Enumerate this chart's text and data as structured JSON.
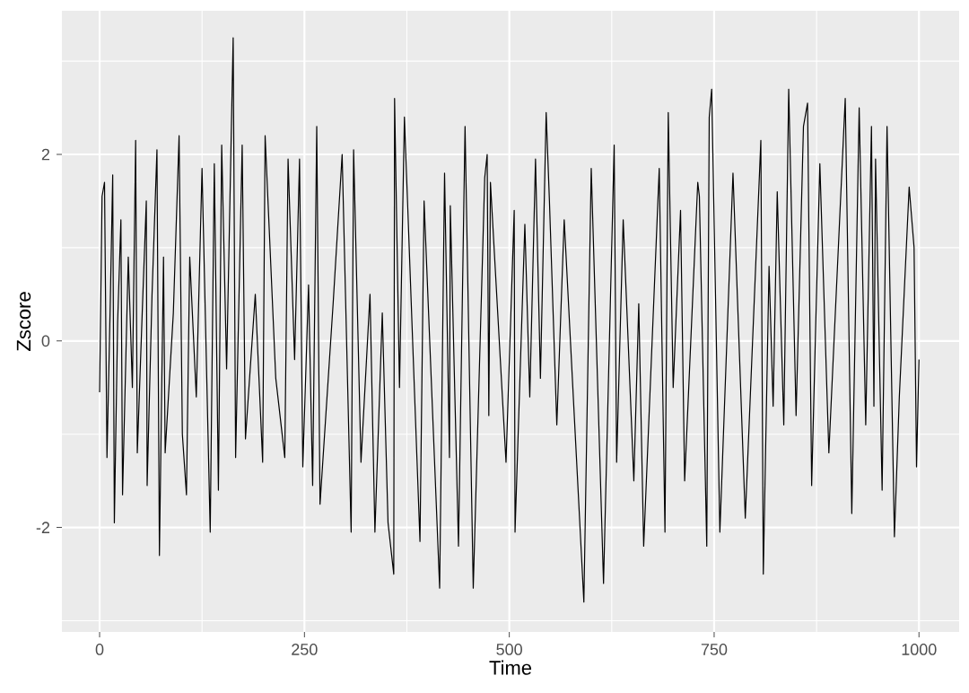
{
  "chart_data": {
    "type": "line",
    "xlabel": "Time",
    "ylabel": "Zscore",
    "xlim": [
      -46,
      1049
    ],
    "ylim": [
      -3.12,
      3.54
    ],
    "xticks": [
      0,
      250,
      500,
      750,
      1000
    ],
    "yticks": [
      -2,
      0,
      2
    ],
    "grid": true,
    "line_style": "solid",
    "marker": "none",
    "series": [
      {
        "color": "#000000",
        "x": [
          0,
          3,
          6,
          9,
          13,
          16,
          18,
          22,
          26,
          28,
          35,
          40,
          44,
          46,
          52,
          57,
          58,
          64,
          70,
          73,
          78,
          80,
          90,
          97,
          101,
          106,
          110,
          118,
          125,
          135,
          140,
          145,
          149,
          155,
          163,
          166,
          174,
          178,
          190,
          199,
          202,
          215,
          226,
          230,
          238,
          244,
          248,
          255,
          260,
          265,
          269,
          285,
          296,
          307,
          310,
          319,
          330,
          336,
          345,
          352,
          359,
          360,
          366,
          372,
          391,
          396,
          415,
          421,
          427,
          428,
          438,
          446,
          456,
          470,
          473,
          475,
          477,
          496,
          506,
          507,
          519,
          525,
          532,
          538,
          545,
          549,
          558,
          567,
          591,
          600,
          615,
          628,
          631,
          639,
          652,
          658,
          664,
          683,
          690,
          694,
          700,
          709,
          714,
          730,
          732,
          741,
          744,
          747,
          757,
          773,
          788,
          807,
          810,
          817,
          822,
          827,
          835,
          841,
          850,
          859,
          864,
          869,
          879,
          890,
          910,
          918,
          927,
          935,
          942,
          945,
          947,
          955,
          961,
          970,
          976,
          988,
          994,
          997,
          1000
        ],
        "values": [
          -0.55,
          1.55,
          1.7,
          -1.25,
          0.4,
          1.78,
          -1.95,
          0.2,
          1.3,
          -1.65,
          0.9,
          -0.5,
          2.15,
          -1.2,
          0.3,
          1.5,
          -1.55,
          0.5,
          2.05,
          -2.3,
          0.9,
          -1.2,
          0.3,
          2.2,
          -1.0,
          -1.65,
          0.9,
          -0.6,
          1.85,
          -2.05,
          1.9,
          -1.6,
          2.1,
          -0.3,
          3.25,
          -1.25,
          2.1,
          -1.05,
          0.5,
          -1.3,
          2.2,
          -0.4,
          -1.25,
          1.95,
          -0.2,
          1.95,
          -1.35,
          0.6,
          -1.55,
          2.3,
          -1.75,
          0.4,
          2.0,
          -2.05,
          2.05,
          -1.3,
          0.5,
          -2.05,
          0.3,
          -1.95,
          -2.5,
          2.6,
          -0.5,
          2.4,
          -2.15,
          1.5,
          -2.65,
          1.8,
          -1.25,
          1.45,
          -2.2,
          2.3,
          -2.65,
          1.75,
          2.0,
          -0.8,
          1.7,
          -1.3,
          1.4,
          -2.05,
          1.25,
          -0.6,
          1.95,
          -0.4,
          2.45,
          1.5,
          -0.9,
          1.3,
          -2.8,
          1.85,
          -2.6,
          2.1,
          -1.3,
          1.3,
          -1.5,
          0.4,
          -2.2,
          1.85,
          -2.05,
          2.45,
          -0.5,
          1.4,
          -1.5,
          1.7,
          1.55,
          -2.2,
          2.4,
          2.7,
          -2.05,
          1.8,
          -1.9,
          2.15,
          -2.5,
          0.8,
          -0.7,
          1.6,
          -0.9,
          2.7,
          -0.8,
          2.3,
          2.55,
          -1.55,
          1.9,
          -1.2,
          2.6,
          -1.85,
          2.5,
          -0.9,
          2.3,
          -0.7,
          1.95,
          -1.6,
          2.3,
          -2.1,
          -0.6,
          1.65,
          1.0,
          -1.35,
          -0.2
        ]
      }
    ]
  }
}
